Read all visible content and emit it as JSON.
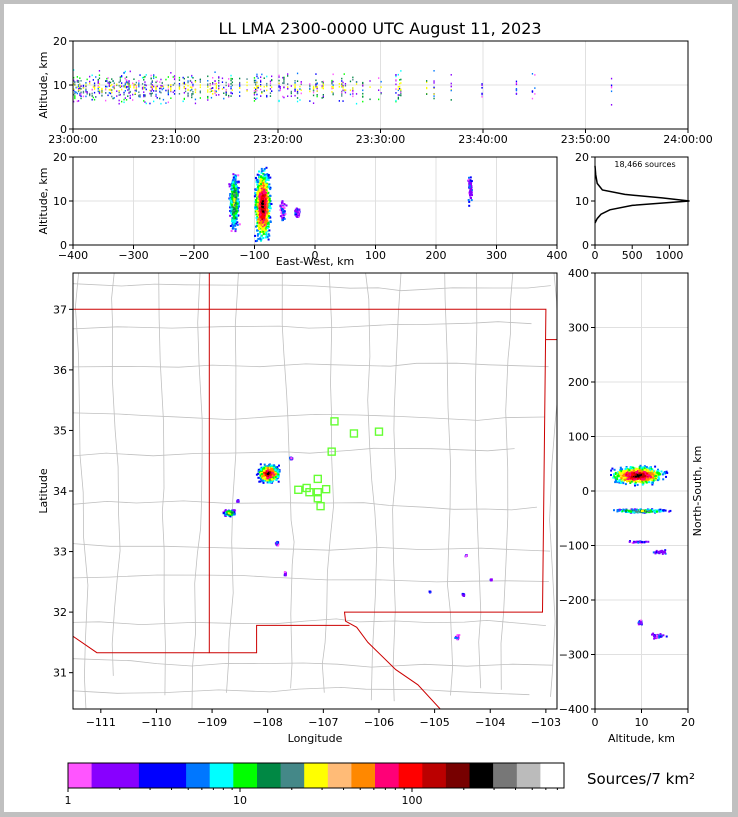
{
  "title": "LL LMA 2300-0000 UTC August 11, 2023",
  "colorbar_label": "Sources/7 km²",
  "colorbar_ticks": [
    "1",
    "10",
    "100"
  ],
  "colorbar_colors": [
    "#ff55ff",
    "#8800ff",
    "#8800ff",
    "#0000ff",
    "#0000ff",
    "#0077ff",
    "#00ffff",
    "#00ff00",
    "#008844",
    "#448888",
    "#ffff00",
    "#ffbb77",
    "#ff8800",
    "#ff0077",
    "#ff0000",
    "#bb0000",
    "#770000",
    "#000000",
    "#777777",
    "#bbbbbb",
    "#ffffff"
  ],
  "chart_data": [
    {
      "type": "scatter",
      "name": "time-height",
      "xlabel": "",
      "ylabel": "Altitude, km",
      "x_ticks": [
        "23:00:00",
        "23:10:00",
        "23:20:00",
        "23:30:00",
        "23:40:00",
        "23:50:00",
        "24:00:00"
      ],
      "xlim_minutes": [
        0,
        60
      ],
      "ylim": [
        0,
        20
      ],
      "y_ticks": [
        0,
        10,
        20
      ],
      "activity_minutes": [
        [
          0,
          38
        ],
        [
          39,
          47
        ],
        [
          52,
          53
        ],
        [
          58,
          60
        ]
      ],
      "grid": true
    },
    {
      "type": "scatter",
      "name": "east-west altitude",
      "xlabel": "East-West, km",
      "ylabel": "Altitude, km",
      "xlim": [
        -400,
        400
      ],
      "x_ticks": [
        -400,
        -300,
        -200,
        -100,
        0,
        100,
        200,
        300,
        400
      ],
      "ylim": [
        0,
        20
      ],
      "y_ticks": [
        0,
        10,
        20
      ],
      "clusters": [
        {
          "x": -135,
          "y": 10,
          "w": 20,
          "h": 16,
          "intensity": "medium"
        },
        {
          "x": -88,
          "y": 9,
          "w": 32,
          "h": 20,
          "intensity": "high"
        },
        {
          "x": -55,
          "y": 8,
          "w": 14,
          "h": 6,
          "intensity": "low"
        },
        {
          "x": -30,
          "y": 7.5,
          "w": 10,
          "h": 3,
          "intensity": "low"
        },
        {
          "x": 255,
          "y": 13,
          "w": 8,
          "h": 10,
          "intensity": "low"
        }
      ]
    },
    {
      "type": "line",
      "name": "altitude histogram",
      "xlim": [
        0,
        1250
      ],
      "x_ticks": [
        0,
        500,
        1000
      ],
      "ylim": [
        0,
        20
      ],
      "y_ticks": [
        0,
        10,
        20
      ],
      "annotation": "18,466 sources",
      "profile": [
        [
          0,
          5
        ],
        [
          30,
          6
        ],
        [
          80,
          7
        ],
        [
          200,
          8
        ],
        [
          500,
          9
        ],
        [
          1270,
          10
        ],
        [
          900,
          10.7
        ],
        [
          400,
          11.5
        ],
        [
          100,
          12.5
        ],
        [
          30,
          14
        ],
        [
          10,
          16
        ],
        [
          0,
          18
        ]
      ]
    },
    {
      "type": "heatmap",
      "name": "plan view",
      "xlabel": "Longitude",
      "ylabel": "Latitude",
      "xlim": [
        -111.5,
        -102.8
      ],
      "x_ticks": [
        -111,
        -110,
        -109,
        -108,
        -107,
        -106,
        -105,
        -104,
        -103
      ],
      "ylim": [
        30.4,
        37.6
      ],
      "y_ticks": [
        31,
        32,
        33,
        34,
        35,
        36,
        37
      ],
      "clusters": [
        {
          "lon": -108.0,
          "lat": 34.3,
          "w": 0.45,
          "h": 0.35,
          "intensity": "high"
        },
        {
          "lon": -108.7,
          "lat": 33.65,
          "w": 0.25,
          "h": 0.12,
          "intensity": "medium"
        },
        {
          "lon": -108.55,
          "lat": 33.85,
          "w": 0.05,
          "h": 0.05,
          "intensity": "low"
        },
        {
          "lon": -107.6,
          "lat": 34.55,
          "w": 0.08,
          "h": 0.05,
          "intensity": "low"
        },
        {
          "lon": -107.85,
          "lat": 33.15,
          "w": 0.08,
          "h": 0.1,
          "intensity": "low"
        },
        {
          "lon": -107.7,
          "lat": 32.65,
          "w": 0.05,
          "h": 0.08,
          "intensity": "low"
        },
        {
          "lon": -104.45,
          "lat": 32.95,
          "w": 0.04,
          "h": 0.04,
          "intensity": "low"
        },
        {
          "lon": -104.5,
          "lat": 32.3,
          "w": 0.05,
          "h": 0.05,
          "intensity": "low"
        },
        {
          "lon": -104.6,
          "lat": 31.6,
          "w": 0.15,
          "h": 0.1,
          "intensity": "low"
        },
        {
          "lon": -105.1,
          "lat": 32.35,
          "w": 0.03,
          "h": 0.03,
          "intensity": "low"
        },
        {
          "lon": -104.0,
          "lat": 32.55,
          "w": 0.04,
          "h": 0.04,
          "intensity": "low"
        }
      ],
      "stations": [
        [
          -106.8,
          35.15
        ],
        [
          -106.45,
          34.95
        ],
        [
          -106.0,
          34.98
        ],
        [
          -106.85,
          34.65
        ],
        [
          -107.1,
          34.2
        ],
        [
          -107.3,
          34.05
        ],
        [
          -107.45,
          34.02
        ],
        [
          -107.25,
          33.98
        ],
        [
          -107.1,
          33.98
        ],
        [
          -106.95,
          34.03
        ],
        [
          -107.1,
          33.88
        ],
        [
          -107.05,
          33.75
        ]
      ]
    },
    {
      "type": "scatter",
      "name": "north-south altitude",
      "xlabel": "Altitude, km",
      "ylabel": "North-South, km",
      "xlim": [
        0,
        20
      ],
      "x_ticks": [
        0,
        10,
        20
      ],
      "ylim": [
        -400,
        400
      ],
      "y_ticks": [
        -400,
        -300,
        -200,
        -100,
        0,
        100,
        200,
        300,
        400
      ],
      "clusters": [
        {
          "x": 9,
          "y": 30,
          "w": 14,
          "h": 40,
          "intensity": "high"
        },
        {
          "x": 9.5,
          "y": -35,
          "w": 15,
          "h": 8,
          "intensity": "medium"
        },
        {
          "x": 9,
          "y": -92,
          "w": 6,
          "h": 5,
          "intensity": "low"
        },
        {
          "x": 14,
          "y": -110,
          "w": 4,
          "h": 10,
          "intensity": "low"
        },
        {
          "x": 13.5,
          "y": -265,
          "w": 5,
          "h": 12,
          "intensity": "low"
        },
        {
          "x": 9.5,
          "y": -240,
          "w": 1,
          "h": 10,
          "intensity": "low"
        }
      ]
    }
  ]
}
